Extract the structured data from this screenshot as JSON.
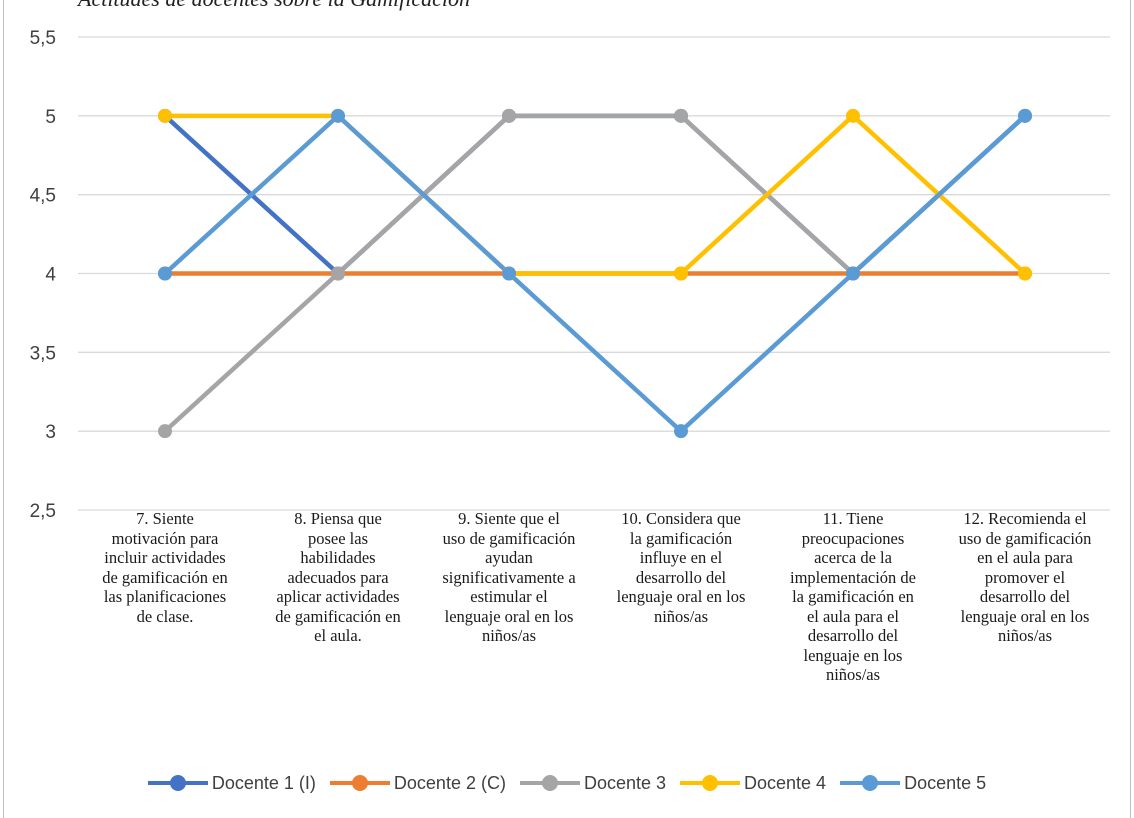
{
  "caption": "Actitudes de docentes sobre la Gamificación",
  "chart_data": {
    "type": "line",
    "title": "",
    "xlabel": "",
    "ylabel": "",
    "ylim": [
      2.5,
      5.5
    ],
    "yticks": [
      2.5,
      3,
      3.5,
      4,
      4.5,
      5,
      5.5
    ],
    "ytick_labels": [
      "2,5",
      "3",
      "3,5",
      "4",
      "4,5",
      "5",
      "5,5"
    ],
    "grid": true,
    "legend_position": "bottom",
    "categories": [
      "7.     Siente\nmotivación para\nincluir actividades\nde gamificación en\nlas planificaciones\nde clase.",
      "8.     Piensa que\nposee las\nhabilidades\nadecuados  para\naplicar actividades\nde gamificación en\nel aula.",
      "9.    Siente que el\nuso de gamificación\nayudan\nsignificativamente a\nestimular el\nlenguaje oral en los\nniños/as",
      "10.  Considera que\nla gamificación\ninfluye en el\ndesarrollo del\nlenguaje oral en los\nniños/as",
      "11.  Tiene\npreocupaciones\nacerca de la\nimplementación de\nla gamificación en\nel aula para el\ndesarrollo del\nlenguaje en los\nniños/as",
      "12.  Recomienda el\nuso de gamificación\nen el aula para\npromover el\ndesarrollo del\nlenguaje oral en los\nniños/as"
    ],
    "series": [
      {
        "name": "Docente 1 (I)",
        "color": "#4472c4",
        "values": [
          5,
          4,
          5,
          5,
          4,
          5
        ]
      },
      {
        "name": "Docente 2 (C)",
        "color": "#ed7d31",
        "values": [
          4,
          4,
          4,
          4,
          4,
          4
        ]
      },
      {
        "name": "Docente 3",
        "color": "#a5a5a5",
        "values": [
          3,
          4,
          5,
          5,
          4,
          5
        ]
      },
      {
        "name": "Docente 4",
        "color": "#ffc000",
        "values": [
          5,
          5,
          4,
          4,
          5,
          4
        ]
      },
      {
        "name": "Docente 5",
        "color": "#5b9bd5",
        "values": [
          4,
          5,
          4,
          3,
          4,
          5
        ]
      }
    ]
  }
}
